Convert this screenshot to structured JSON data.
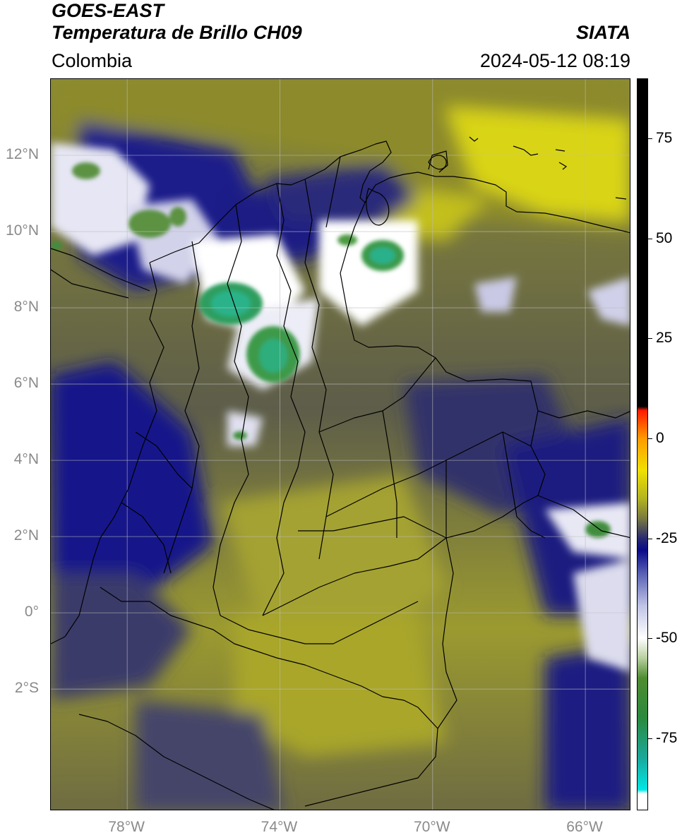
{
  "header": {
    "title_line1": "GOES-EAST",
    "title_line2": "Temperatura de Brillo CH09",
    "agency": "SIATA",
    "region": "Colombia",
    "timestamp": "2024-05-12 08:19"
  },
  "map": {
    "extent": {
      "lon_min": -80.0,
      "lon_max": -64.8,
      "lat_min": -5.2,
      "lat_max": 14.0
    },
    "lat_ticks": [
      {
        "value": 12,
        "label": "12°N"
      },
      {
        "value": 10,
        "label": "10°N"
      },
      {
        "value": 8,
        "label": "8°N"
      },
      {
        "value": 6,
        "label": "6°N"
      },
      {
        "value": 4,
        "label": "4°N"
      },
      {
        "value": 2,
        "label": "2°N"
      },
      {
        "value": 0,
        "label": "0°"
      },
      {
        "value": -2,
        "label": "2°S"
      }
    ],
    "lon_ticks": [
      {
        "value": -78,
        "label": "78°W"
      },
      {
        "value": -74,
        "label": "74°W"
      },
      {
        "value": -70,
        "label": "70°W"
      },
      {
        "value": -66,
        "label": "66°W"
      }
    ],
    "gridlines": true
  },
  "colorbar": {
    "min": -93,
    "max": 90,
    "ticks": [
      {
        "value": 75,
        "label": "75"
      },
      {
        "value": 50,
        "label": "50"
      },
      {
        "value": 25,
        "label": "25"
      },
      {
        "value": 0,
        "label": "0"
      },
      {
        "value": -25,
        "label": "-25"
      },
      {
        "value": -50,
        "label": "-50"
      },
      {
        "value": -75,
        "label": "-75"
      }
    ],
    "stops": [
      {
        "value": -93,
        "color": "#ffffff"
      },
      {
        "value": -89,
        "color": "#ffffff"
      },
      {
        "value": -88,
        "color": "#00e6e6"
      },
      {
        "value": -80,
        "color": "#1aa89a"
      },
      {
        "value": -70,
        "color": "#2a8a3e"
      },
      {
        "value": -60,
        "color": "#4f8c30"
      },
      {
        "value": -55,
        "color": "#b8d0a0"
      },
      {
        "value": -50,
        "color": "#ffffff"
      },
      {
        "value": -42,
        "color": "#c0c4e6"
      },
      {
        "value": -34,
        "color": "#5a62b4"
      },
      {
        "value": -28,
        "color": "#0a0a88"
      },
      {
        "value": -25,
        "color": "#2a2a70"
      },
      {
        "value": -20,
        "color": "#7a7a40"
      },
      {
        "value": -15,
        "color": "#b4b420"
      },
      {
        "value": -8,
        "color": "#f0e000"
      },
      {
        "value": 0,
        "color": "#ff9a00"
      },
      {
        "value": 7,
        "color": "#ff1a00"
      },
      {
        "value": 8,
        "color": "#000000"
      },
      {
        "value": 90,
        "color": "#000000"
      }
    ]
  }
}
